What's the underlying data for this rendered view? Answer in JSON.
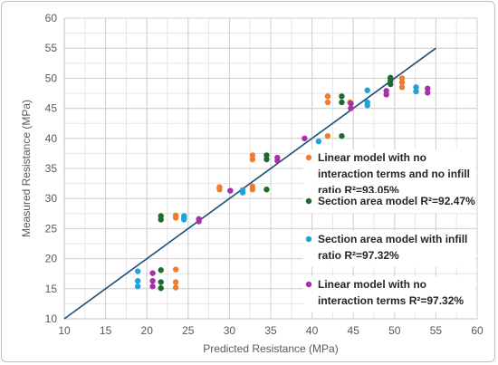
{
  "chart_data": {
    "type": "scatter",
    "title": "",
    "xlabel": "Predicted Resistance (MPa)",
    "ylabel": "Measured Resistance (MPa)",
    "xlim": [
      10,
      60
    ],
    "ylim": [
      10,
      60
    ],
    "xticks": [
      10,
      15,
      20,
      25,
      30,
      35,
      40,
      45,
      50,
      55,
      60
    ],
    "yticks": [
      10,
      15,
      20,
      25,
      30,
      35,
      40,
      45,
      50,
      55,
      60
    ],
    "grid": true,
    "reference_line": {
      "x": [
        10,
        55
      ],
      "y": [
        10,
        55
      ],
      "color": "#1f4e79"
    },
    "legend_position": "right",
    "series": [
      {
        "name": "Linear model with no interaction terms and no infill ratio R²=93.05%",
        "legend_lines": [
          "Linear model with no",
          "interaction terms and no infill",
          "ratio R²=93.05%"
        ],
        "color": "#ed7d31",
        "points": [
          [
            23.5,
            15.2
          ],
          [
            23.5,
            16.1
          ],
          [
            23.5,
            18.2
          ],
          [
            23.5,
            26.8
          ],
          [
            23.5,
            27.2
          ],
          [
            28.8,
            31.5
          ],
          [
            28.8,
            31.9
          ],
          [
            32.8,
            31.5
          ],
          [
            32.8,
            32.0
          ],
          [
            32.8,
            36.5
          ],
          [
            32.8,
            37.2
          ],
          [
            41.9,
            40.4
          ],
          [
            41.9,
            46.0
          ],
          [
            41.9,
            47.0
          ],
          [
            44.6,
            46.0
          ],
          [
            50.9,
            48.5
          ],
          [
            50.9,
            49.3
          ],
          [
            50.9,
            50.0
          ]
        ]
      },
      {
        "name": "Section area model R²=92.47%",
        "legend_lines": [
          "Section area model R²=92.47%"
        ],
        "color": "#1e6b30",
        "points": [
          [
            21.7,
            15.1
          ],
          [
            21.7,
            16.1
          ],
          [
            21.7,
            18.1
          ],
          [
            21.7,
            26.5
          ],
          [
            21.7,
            27.1
          ],
          [
            34.5,
            31.5
          ],
          [
            34.5,
            36.5
          ],
          [
            34.5,
            37.2
          ],
          [
            43.6,
            40.4
          ],
          [
            43.6,
            46.0
          ],
          [
            43.6,
            47.0
          ],
          [
            49.5,
            49.0
          ],
          [
            49.5,
            49.6
          ],
          [
            49.5,
            50.1
          ]
        ]
      },
      {
        "name": "Section area model with infill ratio R²=97.32%",
        "legend_lines": [
          "Section area model with infill",
          "ratio R²=97.32%"
        ],
        "color": "#1fa2d6",
        "points": [
          [
            18.9,
            15.4
          ],
          [
            18.9,
            16.3
          ],
          [
            18.9,
            17.9
          ],
          [
            24.5,
            26.5
          ],
          [
            24.5,
            26.8
          ],
          [
            24.5,
            27.1
          ],
          [
            31.6,
            31.0
          ],
          [
            31.6,
            31.4
          ],
          [
            40.8,
            39.5
          ],
          [
            46.7,
            45.5
          ],
          [
            46.7,
            46.0
          ],
          [
            46.7,
            48.0
          ],
          [
            52.6,
            47.8
          ],
          [
            52.6,
            48.5
          ]
        ]
      },
      {
        "name": "Linear model with no interaction terms R²=97.32%",
        "legend_lines": [
          "Linear model with no",
          "interaction terms R²=97.32%"
        ],
        "color": "#a631a6",
        "points": [
          [
            20.7,
            15.4
          ],
          [
            20.7,
            16.3
          ],
          [
            20.7,
            17.6
          ],
          [
            26.3,
            26.2
          ],
          [
            26.3,
            26.6
          ],
          [
            30.1,
            31.3
          ],
          [
            35.8,
            36.3
          ],
          [
            35.8,
            36.8
          ],
          [
            39.1,
            40.0
          ],
          [
            44.7,
            45.0
          ],
          [
            44.7,
            45.8
          ],
          [
            49.0,
            47.3
          ],
          [
            49.0,
            47.9
          ],
          [
            54.0,
            47.6
          ],
          [
            54.0,
            48.3
          ]
        ]
      }
    ]
  }
}
